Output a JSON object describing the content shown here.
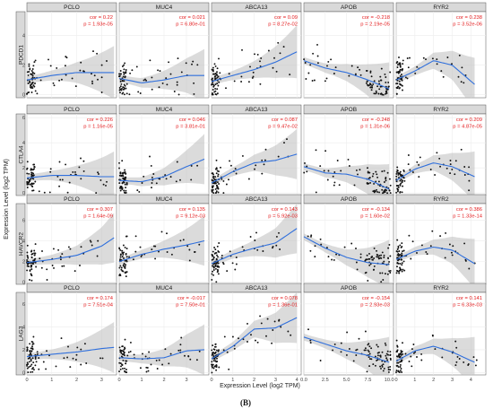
{
  "figure_label": "(B)",
  "chart_data": {
    "type": "scatter",
    "xlabel": "Expression Level (log2 TPM)",
    "ylabel": "Expression Level (log2 TPM)",
    "columns": [
      {
        "name": "PCLO",
        "xlim": [
          0,
          3.6
        ],
        "xticks": [
          0,
          1,
          2,
          3
        ]
      },
      {
        "name": "MUC4",
        "xlim": [
          0,
          4.0
        ],
        "xticks": [
          0,
          1,
          2,
          3
        ]
      },
      {
        "name": "ABCA13",
        "xlim": [
          0,
          4.2
        ],
        "xticks": [
          0,
          1,
          2,
          3,
          4
        ]
      },
      {
        "name": "APOB",
        "xlim": [
          0,
          10.5
        ],
        "xticks": [
          0.0,
          2.5,
          5.0,
          7.5,
          10.0
        ]
      },
      {
        "name": "RYR2",
        "xlim": [
          0,
          4.8
        ],
        "xticks": [
          0,
          1,
          2,
          3,
          4
        ]
      }
    ],
    "rows": [
      {
        "name": "PDCD1",
        "ylim": [
          -0.2,
          5.6
        ],
        "yticks": [
          0,
          2,
          4
        ]
      },
      {
        "name": "CTLA4",
        "ylim": [
          -0.2,
          6.3
        ],
        "yticks": [
          0,
          2,
          4,
          6
        ]
      },
      {
        "name": "HAVCR2",
        "ylim": [
          -0.2,
          7.6
        ],
        "yticks": [
          0,
          2,
          4,
          6
        ]
      },
      {
        "name": "LAG3",
        "ylim": [
          -0.2,
          7.0
        ],
        "yticks": [
          0,
          2,
          4,
          6
        ]
      }
    ],
    "panels": [
      [
        {
          "cor": "cor = 0.22",
          "p": "p = 1.93e-05",
          "fit": [
            [
              0,
              1.0
            ],
            [
              1,
              1.3
            ],
            [
              2,
              1.5
            ],
            [
              3,
              1.5
            ],
            [
              3.5,
              1.5
            ]
          ]
        },
        {
          "cor": "cor = 0.021",
          "p": "p = 6.80e-01",
          "fit": [
            [
              0,
              1.1
            ],
            [
              1,
              0.8
            ],
            [
              2,
              1.0
            ],
            [
              3,
              1.3
            ],
            [
              3.8,
              1.3
            ]
          ]
        },
        {
          "cor": "cor = 0.09",
          "p": "p = 8.27e-02",
          "fit": [
            [
              0,
              0.9
            ],
            [
              1,
              1.3
            ],
            [
              2,
              1.7
            ],
            [
              3,
              2.2
            ],
            [
              4,
              2.9
            ]
          ]
        },
        {
          "cor": "cor = -0.218",
          "p": "p = 2.19e-05",
          "fit": [
            [
              0,
              2.3
            ],
            [
              2.5,
              1.8
            ],
            [
              5,
              1.5
            ],
            [
              7.5,
              1.0
            ],
            [
              10,
              0.4
            ]
          ]
        },
        {
          "cor": "cor = 0.238",
          "p": "p = 3.52e-06",
          "fit": [
            [
              0,
              1.0
            ],
            [
              1,
              1.6
            ],
            [
              2,
              2.3
            ],
            [
              3,
              2.0
            ],
            [
              4.2,
              0.7
            ]
          ]
        }
      ],
      [
        {
          "cor": "cor = 0.226",
          "p": "p = 1.16e-05",
          "fit": [
            [
              0,
              1.2
            ],
            [
              1,
              1.4
            ],
            [
              2,
              1.4
            ],
            [
              3,
              1.3
            ],
            [
              3.5,
              1.3
            ]
          ]
        },
        {
          "cor": "cor = 0.046",
          "p": "p = 3.81e-01",
          "fit": [
            [
              0,
              1.0
            ],
            [
              1,
              0.9
            ],
            [
              2,
              1.3
            ],
            [
              3,
              2.1
            ],
            [
              3.8,
              2.7
            ]
          ]
        },
        {
          "cor": "cor = 0.087",
          "p": "p = 9.47e-02",
          "fit": [
            [
              0,
              0.8
            ],
            [
              1,
              1.7
            ],
            [
              2,
              2.4
            ],
            [
              3,
              2.6
            ],
            [
              4,
              3.1
            ]
          ]
        },
        {
          "cor": "cor = -0.248",
          "p": "p = 1.31e-06",
          "fit": [
            [
              0,
              2.1
            ],
            [
              2.5,
              1.6
            ],
            [
              5,
              1.5
            ],
            [
              7.5,
              1.1
            ],
            [
              10,
              0.3
            ]
          ]
        },
        {
          "cor": "cor = 0.209",
          "p": "p = 4.87e-05",
          "fit": [
            [
              0,
              1.0
            ],
            [
              1,
              1.9
            ],
            [
              2,
              2.4
            ],
            [
              3,
              2.1
            ],
            [
              4.2,
              1.3
            ]
          ]
        }
      ],
      [
        {
          "cor": "cor = 0.307",
          "p": "p = 1.64e-09",
          "fit": [
            [
              0,
              1.9
            ],
            [
              1,
              2.2
            ],
            [
              2,
              2.6
            ],
            [
              3,
              3.5
            ],
            [
              3.5,
              4.3
            ]
          ]
        },
        {
          "cor": "cor = 0.135",
          "p": "p = 9.12e-03",
          "fit": [
            [
              0,
              2.0
            ],
            [
              1,
              2.7
            ],
            [
              2,
              3.2
            ],
            [
              3,
              3.6
            ],
            [
              3.8,
              4.0
            ]
          ]
        },
        {
          "cor": "cor = 0.143",
          "p": "p = 5.92e-03",
          "fit": [
            [
              0,
              1.8
            ],
            [
              1,
              2.7
            ],
            [
              2,
              3.3
            ],
            [
              3,
              3.8
            ],
            [
              4,
              5.2
            ]
          ]
        },
        {
          "cor": "cor = -0.134",
          "p": "p = 1.60e-02",
          "fit": [
            [
              0,
              4.4
            ],
            [
              2.5,
              3.3
            ],
            [
              5,
              2.4
            ],
            [
              7.5,
              1.9
            ],
            [
              10,
              1.7
            ]
          ]
        },
        {
          "cor": "cor = 0.386",
          "p": "p = 1.33e-14",
          "fit": [
            [
              0,
              2.2
            ],
            [
              1,
              3.0
            ],
            [
              2,
              3.4
            ],
            [
              3,
              3.1
            ],
            [
              4.2,
              1.8
            ]
          ]
        }
      ],
      [
        {
          "cor": "cor = 0.174",
          "p": "p = 7.51e-04",
          "fit": [
            [
              0,
              1.4
            ],
            [
              1,
              1.6
            ],
            [
              2,
              1.8
            ],
            [
              3,
              2.1
            ],
            [
              3.5,
              2.2
            ]
          ]
        },
        {
          "cor": "cor = -0.017",
          "p": "p = 7.50e-01",
          "fit": [
            [
              0,
              1.3
            ],
            [
              1,
              1.2
            ],
            [
              2,
              1.3
            ],
            [
              3,
              1.9
            ],
            [
              3.8,
              2.0
            ]
          ]
        },
        {
          "cor": "cor = 0.078",
          "p": "p = 1.36e-01",
          "fit": [
            [
              0,
              1.2
            ],
            [
              1,
              2.3
            ],
            [
              2,
              3.8
            ],
            [
              3,
              3.9
            ],
            [
              4,
              4.8
            ]
          ]
        },
        {
          "cor": "cor = -0.154",
          "p": "p = 2.93e-03",
          "fit": [
            [
              0,
              3.1
            ],
            [
              2.5,
              2.5
            ],
            [
              5,
              1.9
            ],
            [
              7.5,
              1.5
            ],
            [
              10,
              0.9
            ]
          ]
        },
        {
          "cor": "cor = 0.141",
          "p": "p = 6.33e-03",
          "fit": [
            [
              0,
              1.0
            ],
            [
              1,
              1.9
            ],
            [
              2,
              2.3
            ],
            [
              3,
              1.8
            ],
            [
              4.2,
              0.9
            ]
          ]
        }
      ]
    ]
  }
}
